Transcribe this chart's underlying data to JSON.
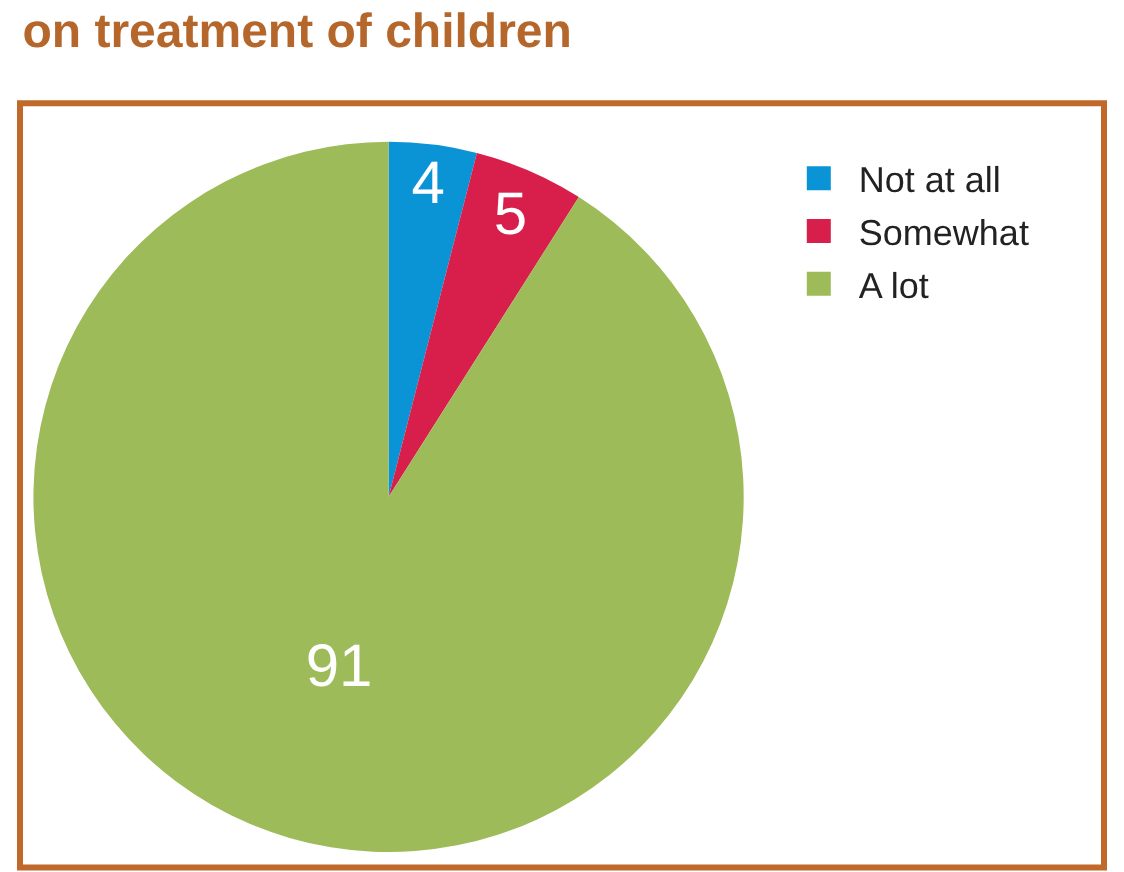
{
  "chart_data": {
    "type": "pie",
    "title": "on treatment of children",
    "categories": [
      "Not at all",
      "Somewhat",
      "A lot"
    ],
    "values": [
      4,
      5,
      91
    ],
    "colors": [
      "#0a93d5",
      "#d81f4b",
      "#9dbb59"
    ],
    "data_labels": true,
    "legend": "top right"
  }
}
